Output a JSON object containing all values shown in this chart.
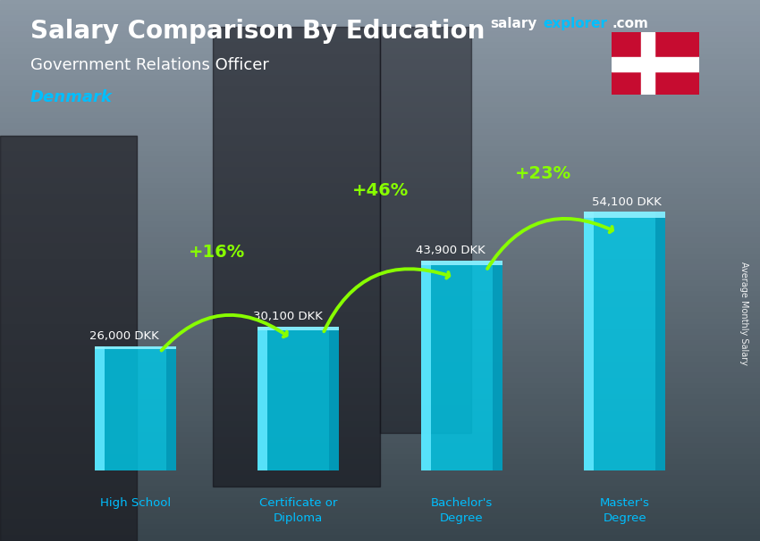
{
  "title_bold": "Salary Comparison By Education",
  "subtitle": "Government Relations Officer",
  "country": "Denmark",
  "ylabel": "Average Monthly Salary",
  "categories": [
    "High School",
    "Certificate or\nDiploma",
    "Bachelor's\nDegree",
    "Master's\nDegree"
  ],
  "values": [
    26000,
    30100,
    43900,
    54100
  ],
  "value_labels": [
    "26,000 DKK",
    "30,100 DKK",
    "43,900 DKK",
    "54,100 DKK"
  ],
  "pct_changes": [
    "+16%",
    "+46%",
    "+23%"
  ],
  "bar_color_main": "#00C8E8",
  "bar_color_light": "#60E8FF",
  "bar_color_dark": "#0090B0",
  "pct_color": "#88FF00",
  "title_color": "#FFFFFF",
  "subtitle_color": "#FFFFFF",
  "country_color": "#00BFFF",
  "value_label_color": "#FFFFFF",
  "brand_salary_color": "#FFFFFF",
  "brand_explorer_color": "#00BFFF",
  "brand_com_color": "#FFFFFF",
  "bg_top": "#8a9aaa",
  "bg_bottom": "#404858",
  "ylim": [
    0,
    70000
  ],
  "bar_width": 0.5,
  "x_positions": [
    0,
    1,
    2,
    3
  ]
}
